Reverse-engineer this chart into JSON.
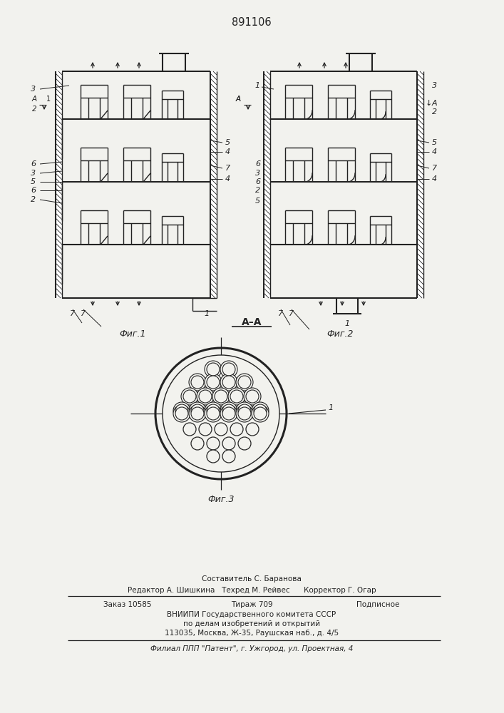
{
  "patent_number": "891106",
  "fig1_caption": "Фиг.1",
  "fig2_caption": "Фиг.2",
  "fig3_caption": "Фиг.3",
  "section_label": "А–А",
  "footer_line1": "Составитель С. Баранова",
  "footer_line2": "Редактор А. Шишкина   Техред М. Рейвес      Корректор Г. Огар",
  "footer_line3_l": "Заказ 10585",
  "footer_line3_m": "Тираж 709",
  "footer_line3_r": "Подписное",
  "footer_line4": "ВНИИПИ Государственного комитета СССР",
  "footer_line5": "по делам изобретений и открытий",
  "footer_line6": "113035, Москва, Ж-35, Раушская наб., д. 4/5",
  "footer_line7": "Филиал ППП \"Патент\", г. Ужгород, ул. Проектная, 4",
  "bg_color": "#f2f2ee",
  "line_color": "#222222"
}
